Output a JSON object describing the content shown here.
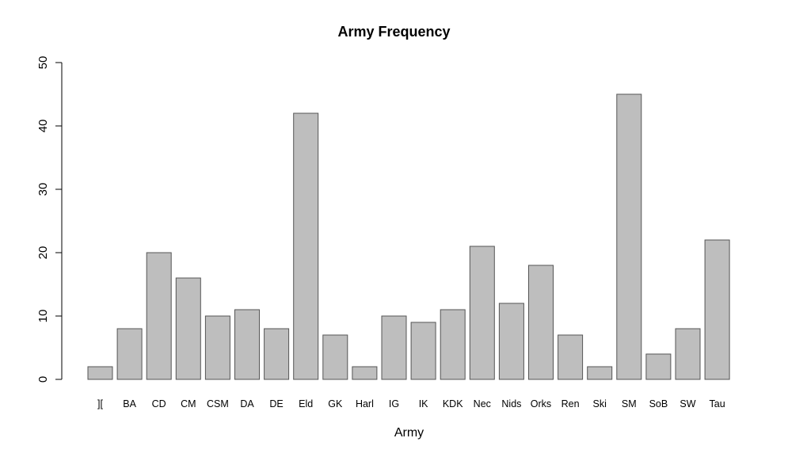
{
  "chart_data": {
    "type": "bar",
    "title": "Army Frequency",
    "xlabel": "Army",
    "ylabel": "",
    "ylim": [
      0,
      50
    ],
    "yticks": [
      0,
      10,
      20,
      30,
      40,
      50
    ],
    "grid": false,
    "legend": null,
    "bar_color": "#bebebe",
    "bar_border": "#555555",
    "categories": [
      "][",
      "BA",
      "CD",
      "CM",
      "CSM",
      "DA",
      "DE",
      "Eld",
      "GK",
      "Harl",
      "IG",
      "IK",
      "KDK",
      "Nec",
      "Nids",
      "Orks",
      "Ren",
      "Ski",
      "SM",
      "SoB",
      "SW",
      "Tau"
    ],
    "values": [
      2,
      8,
      20,
      16,
      10,
      11,
      8,
      42,
      7,
      2,
      10,
      9,
      11,
      21,
      12,
      18,
      7,
      2,
      45,
      4,
      8,
      22
    ]
  }
}
